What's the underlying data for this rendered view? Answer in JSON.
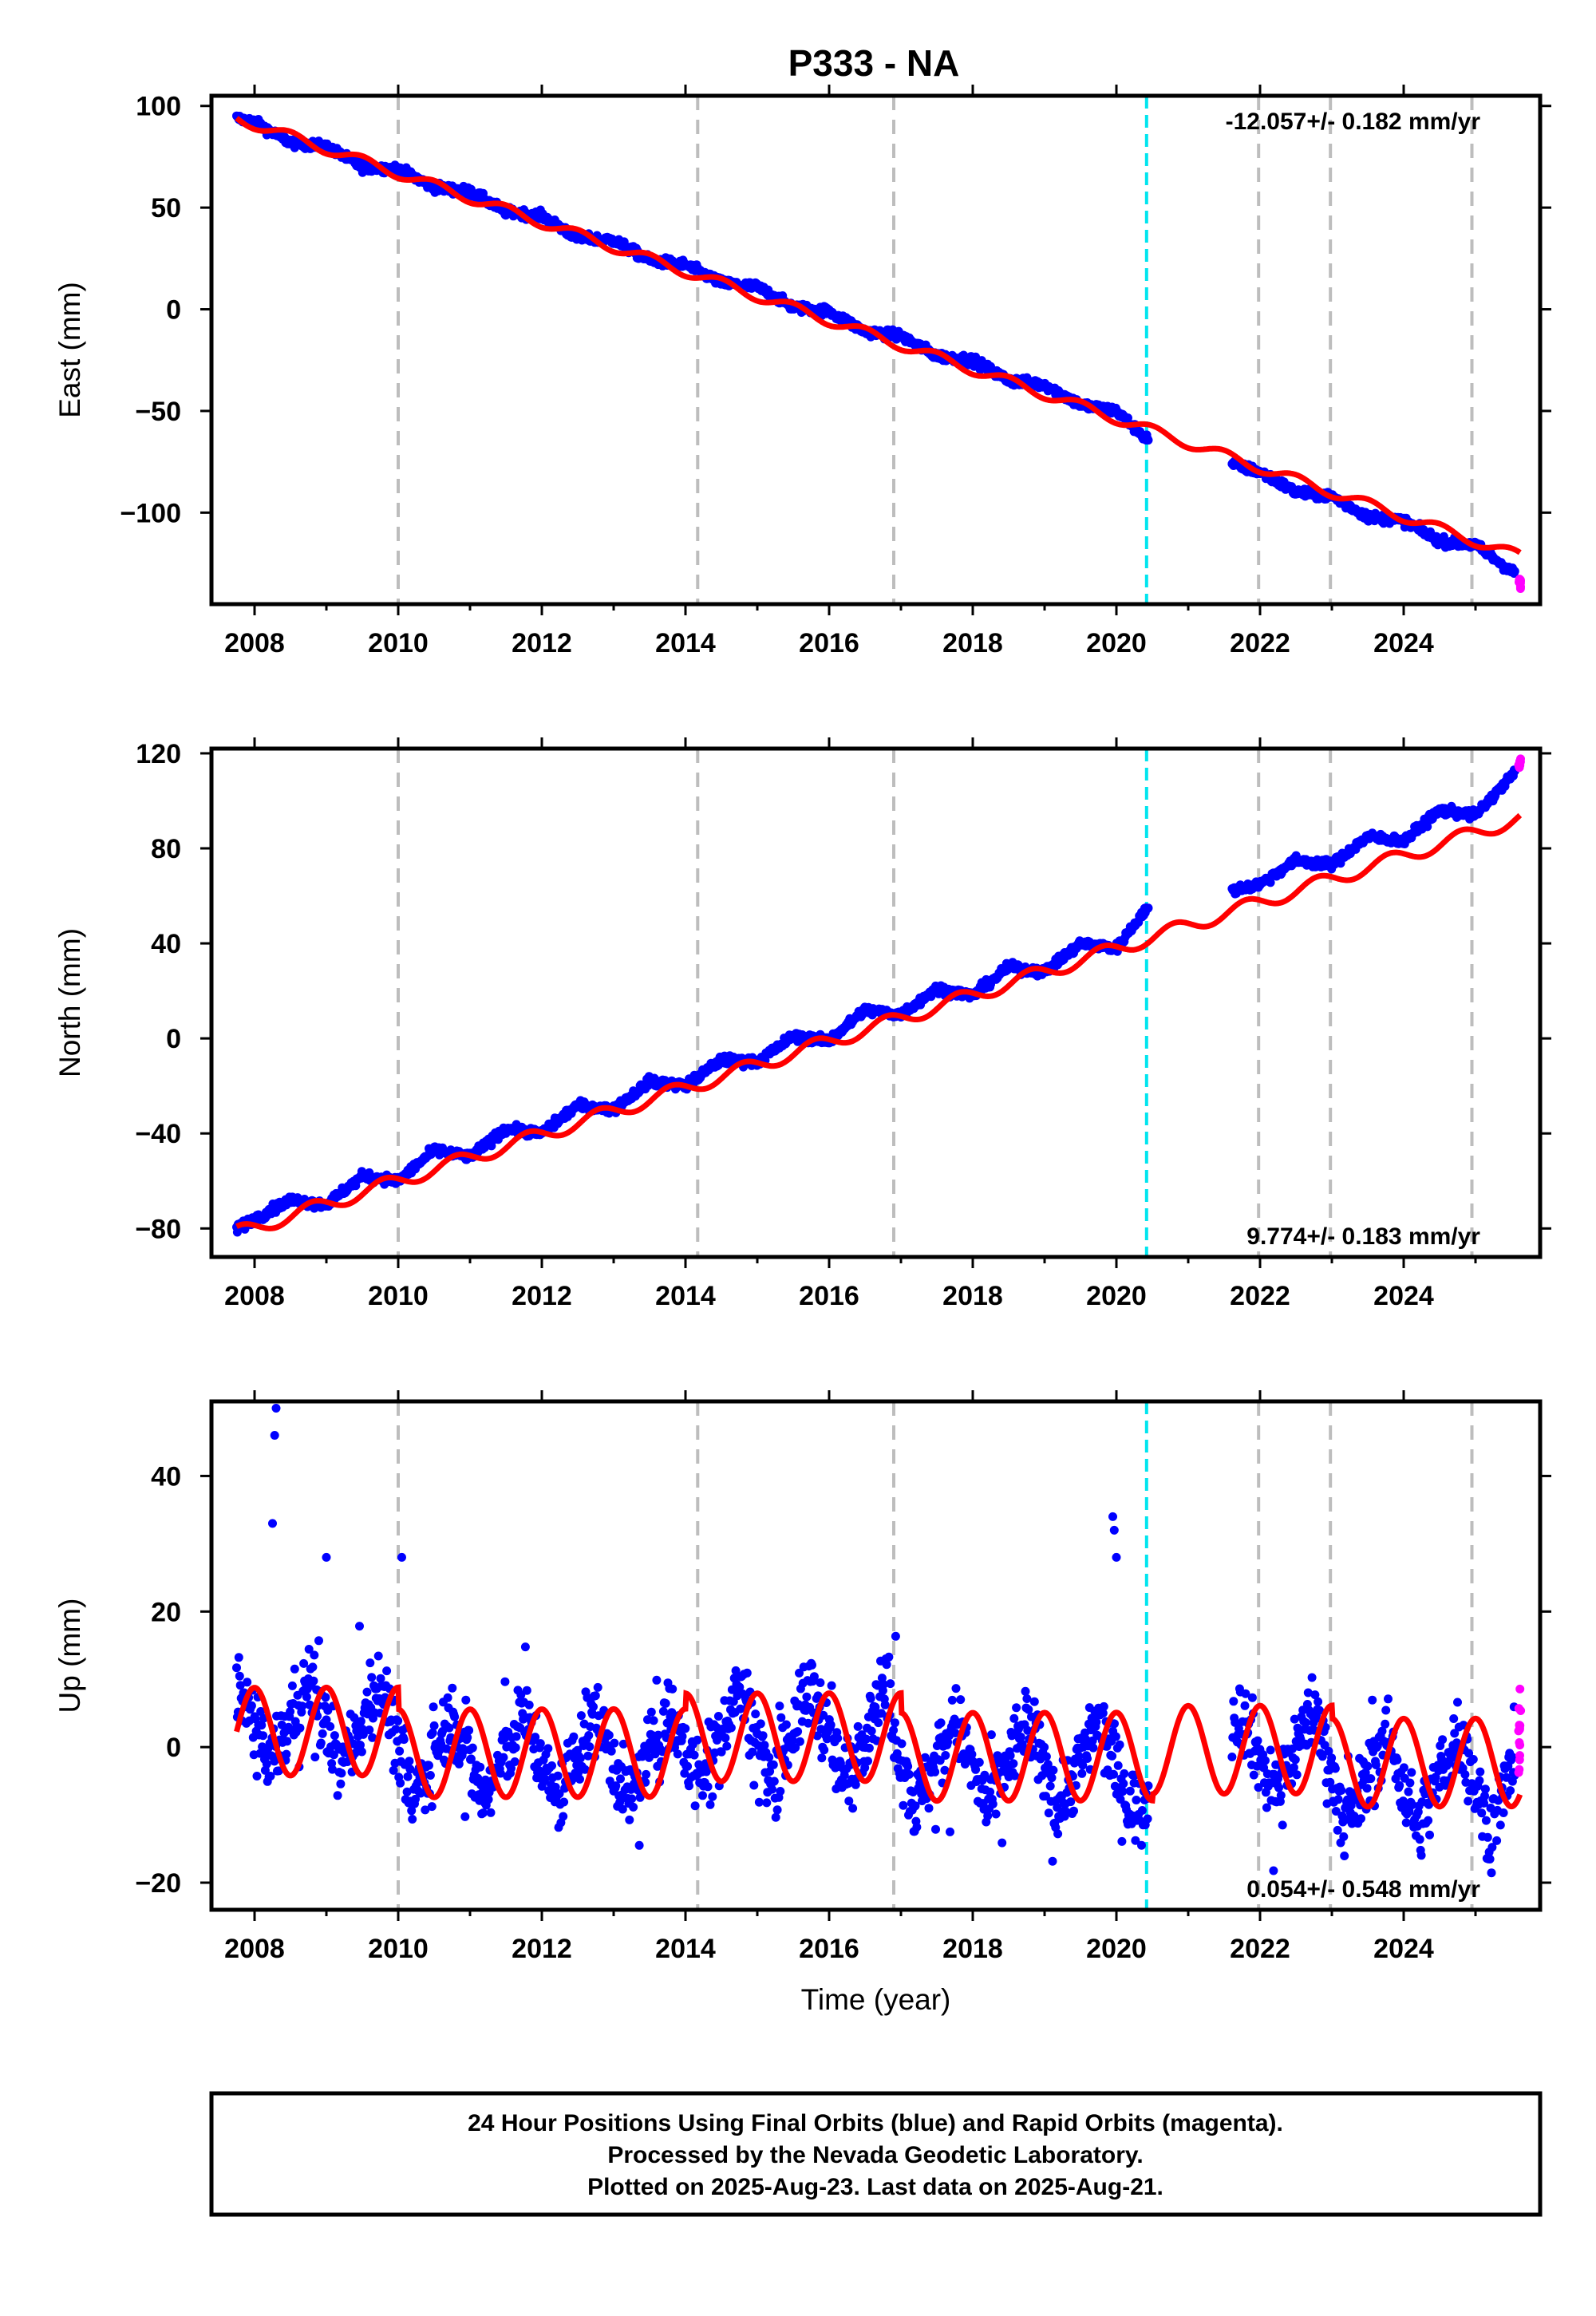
{
  "figure": {
    "title": "P333 - NA",
    "footer": [
      "24 Hour Positions Using Final Orbits (blue) and Rapid Orbits (magenta).",
      "Processed by the Nevada Geodetic Laboratory.",
      "Plotted on 2025-Aug-23. Last data on 2025-Aug-21."
    ],
    "colors": {
      "final_orbits": "#0000ff",
      "rapid_orbits": "#ff00ff",
      "model": "#ff0000",
      "event_line": "#00e5ee",
      "year_lines": "#bdbdbd"
    }
  },
  "chart_data": [
    {
      "type": "scatter",
      "panel": "east",
      "ylabel": "East (mm)",
      "xlabel": "",
      "rate_label": "-12.057+/- 0.182 mm/yr",
      "rate_position": "top-right",
      "xlim": [
        2007.4,
        2025.9
      ],
      "ylim": [
        -145,
        105
      ],
      "xticks": [
        2008,
        2010,
        2012,
        2014,
        2016,
        2018,
        2020,
        2022,
        2024
      ],
      "xtick_labels": [
        "2008",
        "2010",
        "2012",
        "2014",
        "2016",
        "2018",
        "2020",
        "2022",
        "2024"
      ],
      "yticks": [
        100,
        50,
        0,
        -50,
        -100
      ],
      "ytick_labels": [
        "100",
        "50",
        "0",
        "−50",
        "−100"
      ],
      "event_line_x": 2020.42,
      "year_lines_x": [
        2010.0,
        2014.17,
        2016.9,
        2021.98,
        2022.98,
        2024.95
      ],
      "data_gap": [
        2020.45,
        2021.6
      ],
      "series": [
        {
          "name": "Final Orbits",
          "x": [
            2007.75,
            2008.0,
            2008.5,
            2009.0,
            2009.5,
            2010.0,
            2010.5,
            2011.0,
            2011.5,
            2012.0,
            2012.5,
            2013.0,
            2013.5,
            2014.0,
            2014.5,
            2015.0,
            2015.5,
            2016.0,
            2016.5,
            2017.0,
            2017.5,
            2018.0,
            2018.5,
            2019.0,
            2019.5,
            2020.0,
            2020.4,
            2021.6,
            2022.0,
            2022.5,
            2023.0,
            2023.5,
            2024.0,
            2024.5,
            2025.0,
            2025.55
          ],
          "y": [
            94,
            92,
            82,
            80,
            70,
            69,
            60,
            58,
            48,
            46,
            35,
            34,
            24,
            22,
            13,
            11,
            1,
            -1,
            -11,
            -13,
            -23,
            -25,
            -35,
            -37,
            -47,
            -50,
            -63,
            -76,
            -80,
            -90,
            -92,
            -102,
            -104,
            -114,
            -116,
            -130
          ],
          "spread": 3.5
        },
        {
          "name": "Rapid Orbits",
          "x": [
            2025.6,
            2025.63
          ],
          "y": [
            -131,
            -136
          ],
          "spread": 4
        }
      ],
      "model": {
        "trend_mm_per_yr": -12.057,
        "x0": 2007.75,
        "y0": 94,
        "annual_amplitude": 2.5,
        "annual_phase_year": 0.25,
        "offsets": [
          {
            "x": 2020.42,
            "dy": 0
          }
        ]
      }
    },
    {
      "type": "scatter",
      "panel": "north",
      "ylabel": "North (mm)",
      "xlabel": "",
      "rate_label": "9.774+/- 0.183 mm/yr",
      "rate_position": "bottom-right",
      "xlim": [
        2007.4,
        2025.9
      ],
      "ylim": [
        -92,
        122
      ],
      "xticks": [
        2008,
        2010,
        2012,
        2014,
        2016,
        2018,
        2020,
        2022,
        2024
      ],
      "xtick_labels": [
        "2008",
        "2010",
        "2012",
        "2014",
        "2016",
        "2018",
        "2020",
        "2022",
        "2024"
      ],
      "yticks": [
        120,
        80,
        40,
        0,
        -40,
        -80
      ],
      "ytick_labels": [
        "120",
        "80",
        "40",
        "0",
        "−40",
        "−80"
      ],
      "event_line_x": 2020.42,
      "year_lines_x": [
        2010.0,
        2014.17,
        2016.9,
        2021.98,
        2022.98,
        2024.95
      ],
      "data_gap": [
        2020.45,
        2021.6
      ],
      "series": [
        {
          "name": "Final Orbits",
          "x": [
            2007.75,
            2008.5,
            2009.0,
            2009.5,
            2010.0,
            2010.5,
            2011.0,
            2011.5,
            2012.0,
            2012.5,
            2013.0,
            2013.5,
            2014.0,
            2014.5,
            2015.0,
            2015.5,
            2016.0,
            2016.5,
            2017.0,
            2017.5,
            2018.0,
            2018.5,
            2019.0,
            2019.5,
            2020.0,
            2020.4,
            2021.6,
            2022.0,
            2022.5,
            2023.0,
            2023.5,
            2024.0,
            2024.5,
            2025.0,
            2025.55
          ],
          "y": [
            -80,
            -68,
            -70,
            -58,
            -60,
            -47,
            -50,
            -38,
            -40,
            -28,
            -30,
            -18,
            -20,
            -9,
            -10,
            1,
            -1,
            12,
            10,
            21,
            18,
            30,
            28,
            40,
            38,
            54,
            62,
            65,
            75,
            73,
            85,
            83,
            96,
            94,
            112
          ],
          "spread": 3
        },
        {
          "name": "Rapid Orbits",
          "x": [
            2025.6,
            2025.63
          ],
          "y": [
            114,
            117
          ],
          "spread": 3
        }
      ],
      "model": {
        "trend_mm_per_yr": 9.774,
        "x0": 2007.75,
        "y0": -82,
        "annual_amplitude": 3,
        "annual_phase_year": 0.55,
        "offsets": [
          {
            "x": 2020.42,
            "dy": 0
          }
        ]
      }
    },
    {
      "type": "scatter",
      "panel": "up",
      "ylabel": "Up (mm)",
      "xlabel": "Time (year)",
      "rate_label": "0.054+/- 0.548 mm/yr",
      "rate_position": "bottom-right",
      "xlim": [
        2007.4,
        2025.9
      ],
      "ylim": [
        -24,
        51
      ],
      "xticks": [
        2008,
        2010,
        2012,
        2014,
        2016,
        2018,
        2020,
        2022,
        2024
      ],
      "xtick_labels": [
        "2008",
        "2010",
        "2012",
        "2014",
        "2016",
        "2018",
        "2020",
        "2022",
        "2024"
      ],
      "yticks": [
        40,
        20,
        0,
        -20
      ],
      "ytick_labels": [
        "40",
        "20",
        "0",
        "−20"
      ],
      "event_line_x": 2020.42,
      "year_lines_x": [
        2010.0,
        2014.17,
        2016.9,
        2021.98,
        2022.98,
        2024.95
      ],
      "data_gap": [
        2020.45,
        2021.6
      ],
      "series": [
        {
          "name": "Final Orbits",
          "x": [
            2007.75,
            2008.2,
            2008.75,
            2009.2,
            2009.75,
            2010.2,
            2010.75,
            2011.2,
            2011.75,
            2012.2,
            2012.75,
            2013.2,
            2013.75,
            2014.2,
            2014.75,
            2015.2,
            2015.75,
            2016.2,
            2016.75,
            2017.2,
            2017.75,
            2018.2,
            2018.75,
            2019.2,
            2019.75,
            2020.2,
            2021.75,
            2022.2,
            2022.75,
            2023.2,
            2023.75,
            2024.2,
            2024.75,
            2025.2,
            2025.55
          ],
          "y": [
            10,
            -3,
            10,
            -3,
            10,
            -8,
            5,
            -8,
            5,
            -8,
            5,
            -8,
            5,
            -5,
            9,
            -5,
            9,
            -5,
            9,
            -9,
            4,
            -9,
            4,
            -9,
            4,
            -9,
            5,
            -7,
            6,
            -12,
            2,
            -12,
            2,
            -12,
            -2
          ],
          "spread": 7,
          "outliers": [
            {
              "x": 2008.3,
              "y": 50
            },
            {
              "x": 2008.28,
              "y": 46
            },
            {
              "x": 2008.25,
              "y": 33
            },
            {
              "x": 2009.0,
              "y": 28
            },
            {
              "x": 2010.05,
              "y": 28
            },
            {
              "x": 2019.95,
              "y": 34
            },
            {
              "x": 2019.97,
              "y": 32
            },
            {
              "x": 2020.0,
              "y": 28
            }
          ]
        },
        {
          "name": "Rapid Orbits",
          "x": [
            2025.6,
            2025.63
          ],
          "y": [
            0,
            3
          ],
          "spread": 7
        }
      ],
      "model": {
        "trend_mm_per_yr": 0.054,
        "x0": 2007.75,
        "y0": 0,
        "annual_amplitude": 6.5,
        "annual_phase_year": 0.75,
        "offsets": []
      }
    }
  ]
}
